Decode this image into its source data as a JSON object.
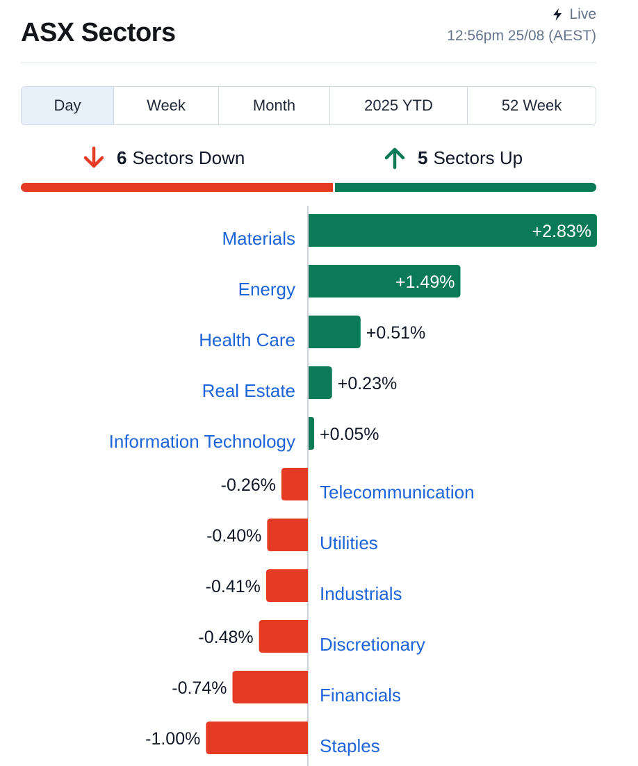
{
  "header": {
    "title": "ASX Sectors",
    "live_label": "Live",
    "timestamp": "12:56pm 25/08 (AEST)"
  },
  "tabs": [
    {
      "label": "Day",
      "active": true
    },
    {
      "label": "Week",
      "active": false
    },
    {
      "label": "Month",
      "active": false
    },
    {
      "label": "2025 YTD",
      "active": false
    },
    {
      "label": "52 Week",
      "active": false
    }
  ],
  "summary": {
    "down_count": "6",
    "down_label": "Sectors Down",
    "up_count": "5",
    "up_label": "Sectors Up"
  },
  "colors": {
    "up": "#0b7a57",
    "down": "#e53b25",
    "link": "#1d64d8",
    "active_tab": "#e8f0fa"
  },
  "chart_data": {
    "type": "bar",
    "orientation": "horizontal",
    "categories": [
      "Materials",
      "Energy",
      "Health Care",
      "Real Estate",
      "Information Technology",
      "Telecommunication",
      "Utilities",
      "Industrials",
      "Discretionary",
      "Financials",
      "Staples"
    ],
    "values": [
      2.83,
      1.49,
      0.51,
      0.23,
      0.05,
      -0.26,
      -0.4,
      -0.41,
      -0.48,
      -0.74,
      -1.0
    ],
    "value_labels": [
      "+2.83%",
      "+1.49%",
      "+0.51%",
      "+0.23%",
      "+0.05%",
      "-0.26%",
      "-0.40%",
      "-0.41%",
      "-0.48%",
      "-0.74%",
      "-1.00%"
    ]
  }
}
